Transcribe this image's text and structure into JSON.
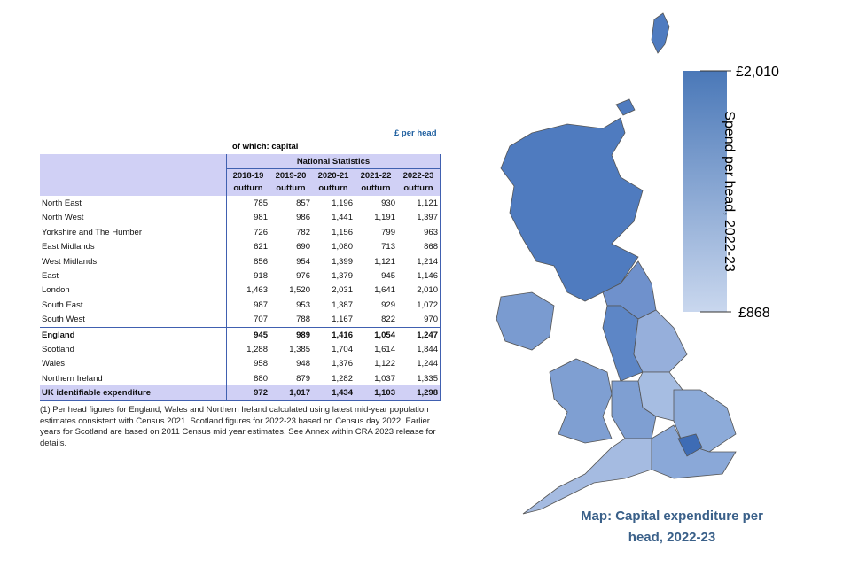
{
  "table": {
    "unit_note": "£ per head",
    "caption": "of which: capital",
    "group_header": "National Statistics",
    "columns": [
      {
        "year": "2018-19",
        "label": "outturn"
      },
      {
        "year": "2019-20",
        "label": "outturn"
      },
      {
        "year": "2020-21",
        "label": "outturn"
      },
      {
        "year": "2021-22",
        "label": "outturn"
      },
      {
        "year": "2022-23",
        "label": "outturn"
      }
    ],
    "rows": [
      [
        "North East",
        "785",
        "857",
        "1,196",
        "930",
        "1,121"
      ],
      [
        "North West",
        "981",
        "986",
        "1,441",
        "1,191",
        "1,397"
      ],
      [
        "Yorkshire and The Humber",
        "726",
        "782",
        "1,156",
        "799",
        "963"
      ],
      [
        "East Midlands",
        "621",
        "690",
        "1,080",
        "713",
        "868"
      ],
      [
        "West Midlands",
        "856",
        "954",
        "1,399",
        "1,121",
        "1,214"
      ],
      [
        "East",
        "918",
        "976",
        "1,379",
        "945",
        "1,146"
      ],
      [
        "London",
        "1,463",
        "1,520",
        "2,031",
        "1,641",
        "2,010"
      ],
      [
        "South East",
        "987",
        "953",
        "1,387",
        "929",
        "1,072"
      ],
      [
        "South West",
        "707",
        "788",
        "1,167",
        "822",
        "970"
      ],
      [
        "England",
        "945",
        "989",
        "1,416",
        "1,054",
        "1,247"
      ],
      [
        "Scotland",
        "1,288",
        "1,385",
        "1,704",
        "1,614",
        "1,844"
      ],
      [
        "Wales",
        "958",
        "948",
        "1,376",
        "1,122",
        "1,244"
      ],
      [
        "Northern Ireland",
        "880",
        "879",
        "1,282",
        "1,037",
        "1,335"
      ],
      [
        "UK identifiable expenditure",
        "972",
        "1,017",
        "1,434",
        "1,103",
        "1,298"
      ]
    ],
    "footnote": "(1) Per head figures for England, Wales and Northern Ireland calculated using latest mid-year population estimates consistent with Census 2021. Scotland figures for 2022-23 based on Census day 2022. Earlier years for Scotland are based on 2011 Census mid year estimates. See Annex within CRA 2023 release for details."
  },
  "map": {
    "title_line1": "Map: Capital expenditure per",
    "title_line2": "head, 2022-23",
    "legend_title": "Spend per head, 2022-23",
    "legend_max": "£2,010",
    "legend_min": "£868"
  }
}
